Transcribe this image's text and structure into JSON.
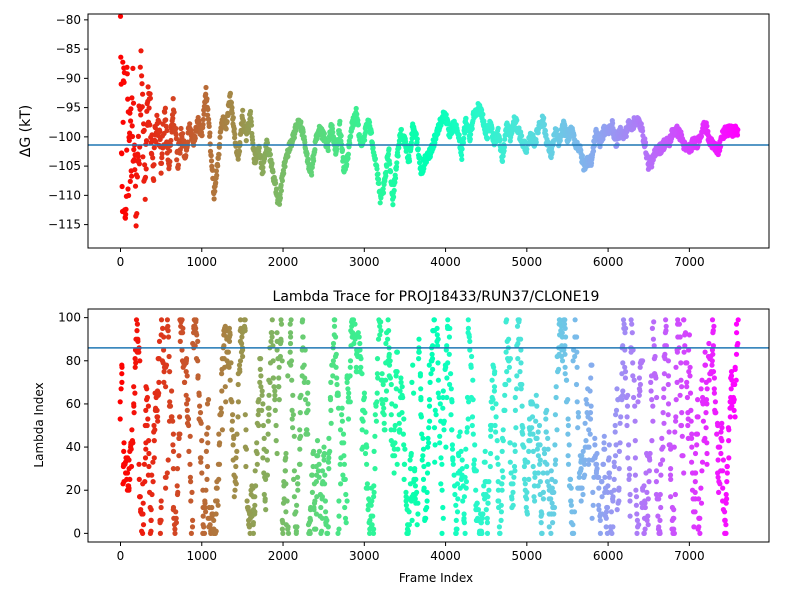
{
  "chart_data": [
    {
      "type": "scatter",
      "title": "",
      "xlabel": "",
      "ylabel": "ΔG (kT)",
      "xlim": [
        -400,
        7980
      ],
      "ylim": [
        -119,
        -79
      ],
      "xticks": [
        0,
        1000,
        2000,
        3000,
        4000,
        5000,
        6000,
        7000
      ],
      "xtick_labels": [
        "0",
        "1000",
        "2000",
        "3000",
        "4000",
        "5000",
        "6000",
        "7000"
      ],
      "yticks": [
        -80,
        -85,
        -90,
        -95,
        -100,
        -105,
        -110,
        -115
      ],
      "ytick_labels": [
        "−80",
        "−85",
        "−90",
        "−95",
        "−100",
        "−105",
        "−110",
        "−115"
      ],
      "hline": -101.4,
      "hline_color": "#1f77b4",
      "colormap": "rainbow, reversed along frame index (red at frame 0, violet at last frame)",
      "n_frames": 7600,
      "trace_keypoints": [
        [
          0,
          -80
        ],
        [
          20,
          -112
        ],
        [
          40,
          -83
        ],
        [
          60,
          -117
        ],
        [
          80,
          -88
        ],
        [
          100,
          -110
        ],
        [
          150,
          -95
        ],
        [
          200,
          -112
        ],
        [
          250,
          -90
        ],
        [
          300,
          -107
        ],
        [
          350,
          -93
        ],
        [
          400,
          -106
        ],
        [
          450,
          -96
        ],
        [
          500,
          -104
        ],
        [
          550,
          -97
        ],
        [
          600,
          -105
        ],
        [
          650,
          -95
        ],
        [
          700,
          -104
        ],
        [
          750,
          -100
        ],
        [
          800,
          -103
        ],
        [
          850,
          -98
        ],
        [
          900,
          -101
        ],
        [
          950,
          -97
        ],
        [
          1000,
          -100
        ],
        [
          1050,
          -92
        ],
        [
          1100,
          -100
        ],
        [
          1150,
          -110
        ],
        [
          1200,
          -104
        ],
        [
          1250,
          -97
        ],
        [
          1300,
          -98
        ],
        [
          1350,
          -93
        ],
        [
          1400,
          -99
        ],
        [
          1450,
          -104
        ],
        [
          1500,
          -96
        ],
        [
          1550,
          -100
        ],
        [
          1600,
          -96
        ],
        [
          1650,
          -104
        ],
        [
          1700,
          -102
        ],
        [
          1750,
          -106
        ],
        [
          1800,
          -101
        ],
        [
          1850,
          -104
        ],
        [
          1900,
          -108
        ],
        [
          1950,
          -112
        ],
        [
          2000,
          -106
        ],
        [
          2050,
          -103
        ],
        [
          2100,
          -101
        ],
        [
          2150,
          -99
        ],
        [
          2200,
          -97
        ],
        [
          2250,
          -100
        ],
        [
          2300,
          -104
        ],
        [
          2350,
          -106
        ],
        [
          2400,
          -101
        ],
        [
          2450,
          -99
        ],
        [
          2500,
          -100
        ],
        [
          2550,
          -102
        ],
        [
          2600,
          -98
        ],
        [
          2650,
          -103
        ],
        [
          2700,
          -98
        ],
        [
          2750,
          -106
        ],
        [
          2800,
          -103
        ],
        [
          2850,
          -98
        ],
        [
          2900,
          -96
        ],
        [
          2950,
          -101
        ],
        [
          3000,
          -100
        ],
        [
          3050,
          -97
        ],
        [
          3100,
          -101
        ],
        [
          3150,
          -105
        ],
        [
          3200,
          -111
        ],
        [
          3250,
          -108
        ],
        [
          3300,
          -102
        ],
        [
          3350,
          -111
        ],
        [
          3400,
          -104
        ],
        [
          3450,
          -99
        ],
        [
          3500,
          -101
        ],
        [
          3550,
          -104
        ],
        [
          3600,
          -98
        ],
        [
          3650,
          -101
        ],
        [
          3700,
          -106
        ],
        [
          3750,
          -104
        ],
        [
          3800,
          -103
        ],
        [
          3850,
          -101
        ],
        [
          3900,
          -99
        ],
        [
          3950,
          -97
        ],
        [
          4000,
          -96
        ],
        [
          4050,
          -100
        ],
        [
          4100,
          -98
        ],
        [
          4150,
          -99
        ],
        [
          4200,
          -103
        ],
        [
          4250,
          -97
        ],
        [
          4300,
          -100
        ],
        [
          4350,
          -96
        ],
        [
          4400,
          -95
        ],
        [
          4450,
          -96
        ],
        [
          4500,
          -100
        ],
        [
          4550,
          -98
        ],
        [
          4600,
          -101
        ],
        [
          4650,
          -99
        ],
        [
          4700,
          -104
        ],
        [
          4750,
          -98
        ],
        [
          4800,
          -100
        ],
        [
          4850,
          -97
        ],
        [
          4900,
          -99
        ],
        [
          4950,
          -101
        ],
        [
          5000,
          -102
        ],
        [
          5050,
          -100
        ],
        [
          5100,
          -101
        ],
        [
          5150,
          -98
        ],
        [
          5200,
          -97
        ],
        [
          5250,
          -101
        ],
        [
          5300,
          -103
        ],
        [
          5350,
          -99
        ],
        [
          5400,
          -101
        ],
        [
          5450,
          -98
        ],
        [
          5500,
          -100
        ],
        [
          5550,
          -99
        ],
        [
          5600,
          -101
        ],
        [
          5650,
          -102
        ],
        [
          5700,
          -105
        ],
        [
          5750,
          -104
        ],
        [
          5800,
          -104
        ],
        [
          5850,
          -99
        ],
        [
          5900,
          -101
        ],
        [
          5950,
          -99
        ],
        [
          6000,
          -99
        ],
        [
          6050,
          -98
        ],
        [
          6100,
          -101
        ],
        [
          6150,
          -99
        ],
        [
          6200,
          -100
        ],
        [
          6250,
          -98
        ],
        [
          6300,
          -98
        ],
        [
          6350,
          -97
        ],
        [
          6400,
          -98
        ],
        [
          6450,
          -101
        ],
        [
          6500,
          -105
        ],
        [
          6550,
          -104
        ],
        [
          6600,
          -102
        ],
        [
          6650,
          -102
        ],
        [
          6700,
          -101
        ],
        [
          6750,
          -101
        ],
        [
          6800,
          -99
        ],
        [
          6850,
          -99
        ],
        [
          6900,
          -100
        ],
        [
          6950,
          -102
        ],
        [
          7000,
          -102
        ],
        [
          7050,
          -101
        ],
        [
          7100,
          -101
        ],
        [
          7150,
          -99
        ],
        [
          7200,
          -98
        ],
        [
          7250,
          -101
        ],
        [
          7300,
          -101
        ],
        [
          7350,
          -103
        ],
        [
          7400,
          -100
        ],
        [
          7450,
          -99
        ],
        [
          7500,
          -99
        ],
        [
          7550,
          -99
        ],
        [
          7600,
          -99
        ]
      ]
    },
    {
      "type": "scatter",
      "title": "Lambda Trace for PROJ18433/RUN37/CLONE19",
      "xlabel": "Frame Index",
      "ylabel": "Lambda Index",
      "xlim": [
        -400,
        7980
      ],
      "ylim": [
        -4,
        104
      ],
      "xticks": [
        0,
        1000,
        2000,
        3000,
        4000,
        5000,
        6000,
        7000
      ],
      "xtick_labels": [
        "0",
        "1000",
        "2000",
        "3000",
        "4000",
        "5000",
        "6000",
        "7000"
      ],
      "yticks": [
        0,
        20,
        40,
        60,
        80,
        100
      ],
      "ytick_labels": [
        "0",
        "20",
        "40",
        "60",
        "80",
        "100"
      ],
      "hline": 86,
      "hline_color": "#1f77b4",
      "colormap": "rainbow, reversed along frame index (red at frame 0, violet at last frame)",
      "n_frames": 7600,
      "lambda_range": [
        0,
        99
      ],
      "description": "Each frame's lambda index (0–99) is plotted as a dot; frames sweep the full 0–99 range repeatedly in vertical bursts."
    }
  ]
}
